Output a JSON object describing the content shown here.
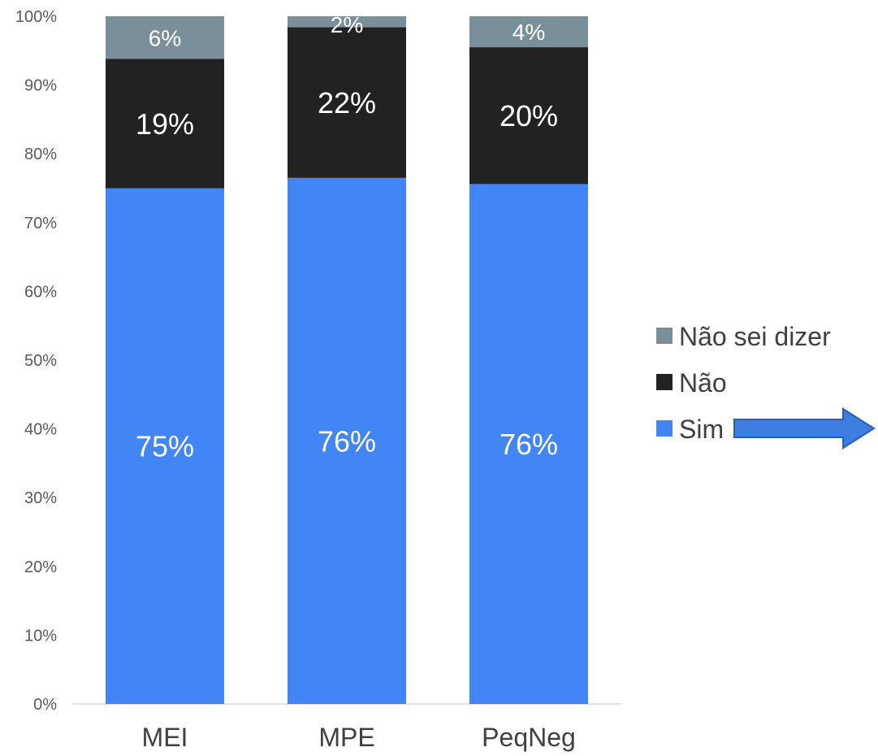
{
  "chart_data": {
    "type": "bar",
    "stacked": true,
    "categories": [
      "MEI",
      "MPE",
      "PeqNeg"
    ],
    "series": [
      {
        "name": "Sim",
        "color": "#4285f4",
        "values": [
          75,
          76.5,
          75.6
        ],
        "labels": [
          "75%",
          "76%",
          "76%"
        ]
      },
      {
        "name": "Não",
        "color": "#222222",
        "values": [
          18.8,
          21.9,
          19.9
        ],
        "labels": [
          "19%",
          "22%",
          "20%"
        ]
      },
      {
        "name": "Não sei dizer",
        "color": "#7a8f9a",
        "values": [
          6.2,
          1.6,
          4.5
        ],
        "labels": [
          "6%",
          "2%",
          "4%"
        ]
      }
    ],
    "yticks": [
      "0%",
      "10%",
      "20%",
      "30%",
      "40%",
      "50%",
      "60%",
      "70%",
      "80%",
      "90%",
      "100%"
    ],
    "ylim": [
      0,
      100
    ],
    "grid": false,
    "legend": {
      "position": "right",
      "order": [
        "Não sei dizer",
        "Não",
        "Sim"
      ],
      "arrow_color": "#3d7fe0"
    }
  }
}
